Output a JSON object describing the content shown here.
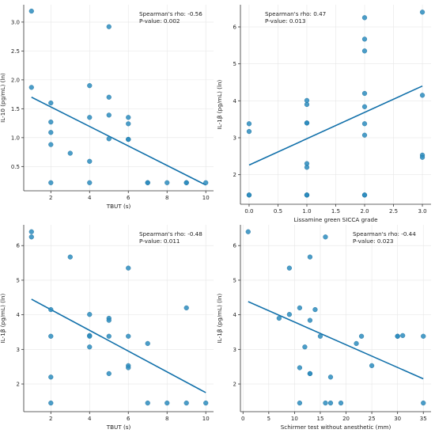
{
  "style": {
    "point_color": "#2b8cbe",
    "point_edge": "#1c6f9c",
    "line_color": "#1170aa",
    "grid_color": "#e6e6e6",
    "axis_color": "#333333"
  },
  "chart_data": [
    {
      "type": "scatter",
      "title": "",
      "xlabel": "TBUT (s)",
      "ylabel": "IL-10 (pg/mL) (ln)",
      "xlim": [
        0.6,
        10.4
      ],
      "ylim": [
        0.08,
        3.3
      ],
      "xticks": [
        2,
        4,
        6,
        8,
        10
      ],
      "yticks": [
        0.5,
        1.0,
        1.5,
        2.0,
        2.5,
        3.0
      ],
      "ytick_labels": [
        "0.5",
        "1.0",
        "1.5",
        "2.0",
        "2.5",
        "3.0"
      ],
      "x": [
        1,
        1,
        2,
        2,
        2,
        2,
        2,
        3,
        4,
        4,
        4,
        4,
        5,
        5,
        5,
        5,
        6,
        6,
        6,
        6,
        7,
        7,
        8,
        9,
        9,
        10
      ],
      "y": [
        3.19,
        1.87,
        1.6,
        1.27,
        1.09,
        0.88,
        0.22,
        0.73,
        1.9,
        1.35,
        0.59,
        0.22,
        2.92,
        1.7,
        1.39,
        0.98,
        1.35,
        1.24,
        0.97,
        0.97,
        0.22,
        0.22,
        0.22,
        0.22,
        0.22,
        0.22
      ],
      "fit": {
        "x": [
          1,
          10
        ],
        "y": [
          1.7,
          0.18
        ]
      },
      "annotation": [
        "Spearman's rho: -0.56",
        "P-value: 0.002"
      ]
    },
    {
      "type": "scatter",
      "title": "",
      "xlabel": "Lissamine green SICCA grade",
      "ylabel": "IL-1β (pg/mL) (ln)",
      "xlim": [
        -0.15,
        3.15
      ],
      "ylim": [
        1.2,
        6.6
      ],
      "xticks": [
        0.0,
        0.5,
        1.0,
        1.5,
        2.0,
        2.5,
        3.0
      ],
      "xtick_labels": [
        "0.0",
        "0.5",
        "1.0",
        "1.5",
        "2.0",
        "2.5",
        "3.0"
      ],
      "yticks": [
        2,
        3,
        4,
        5,
        6
      ],
      "x": [
        0,
        0,
        0,
        0,
        1,
        1,
        1,
        1,
        1,
        1,
        1,
        1,
        1,
        2,
        2,
        2,
        2,
        2,
        2,
        2,
        2,
        2,
        3,
        3,
        3,
        3
      ],
      "y": [
        3.38,
        3.17,
        1.45,
        1.45,
        4.01,
        3.9,
        3.4,
        3.4,
        2.3,
        2.2,
        1.45,
        1.45,
        1.45,
        6.25,
        5.67,
        5.35,
        4.2,
        3.84,
        3.38,
        3.07,
        1.45,
        1.45,
        6.4,
        4.15,
        2.53,
        2.47
      ],
      "fit": {
        "x": [
          0,
          3
        ],
        "y": [
          2.26,
          4.4
        ]
      },
      "annotation": [
        "Spearman's rho: 0.47",
        "P-value: 0.013"
      ]
    },
    {
      "type": "scatter",
      "title": "",
      "xlabel": "TBUT (s)",
      "ylabel": "IL-1β (pg/mL) (ln)",
      "xlim": [
        0.6,
        10.4
      ],
      "ylim": [
        1.2,
        6.6
      ],
      "xticks": [
        2,
        4,
        6,
        8,
        10
      ],
      "yticks": [
        2,
        3,
        4,
        5,
        6
      ],
      "x": [
        1,
        1,
        2,
        2,
        2,
        2,
        3,
        4,
        4,
        4,
        4,
        5,
        5,
        5,
        5,
        6,
        6,
        6,
        6,
        7,
        7,
        8,
        9,
        9,
        10
      ],
      "y": [
        6.4,
        6.25,
        4.15,
        3.38,
        2.2,
        1.45,
        5.67,
        4.01,
        3.4,
        3.38,
        3.07,
        3.9,
        3.84,
        3.38,
        2.3,
        5.35,
        3.38,
        2.53,
        2.47,
        3.17,
        1.45,
        1.45,
        4.2,
        1.45,
        1.45
      ],
      "fit": {
        "x": [
          1,
          10
        ],
        "y": [
          4.45,
          1.75
        ]
      },
      "annotation": [
        "Spearman's rho: -0.48",
        "P-value: 0.011"
      ]
    },
    {
      "type": "scatter",
      "title": "",
      "xlabel": "Schirmer test without anesthetic (mm)",
      "ylabel": "IL-1β (pg/mL) (ln)",
      "xlim": [
        -0.5,
        36.5
      ],
      "ylim": [
        1.2,
        6.6
      ],
      "xticks": [
        0,
        5,
        10,
        15,
        20,
        25,
        30,
        35
      ],
      "yticks": [
        2,
        3,
        4,
        5,
        6
      ],
      "x": [
        1,
        7,
        9,
        9,
        11,
        11,
        11,
        12,
        13,
        13,
        13,
        13,
        14,
        15,
        16,
        16,
        17,
        17,
        19,
        22,
        23,
        25,
        30,
        30,
        31,
        35,
        35
      ],
      "y": [
        6.4,
        3.9,
        5.35,
        4.01,
        4.2,
        2.47,
        1.45,
        3.07,
        5.67,
        3.84,
        2.3,
        2.3,
        4.15,
        3.38,
        6.25,
        1.45,
        2.2,
        1.45,
        1.45,
        3.17,
        3.38,
        2.53,
        3.38,
        3.38,
        3.4,
        3.38,
        1.45
      ],
      "fit": {
        "x": [
          1,
          35
        ],
        "y": [
          4.38,
          2.15
        ]
      },
      "annotation": [
        "Spearman's rho: -0.44",
        "P-value: 0.023"
      ]
    }
  ]
}
